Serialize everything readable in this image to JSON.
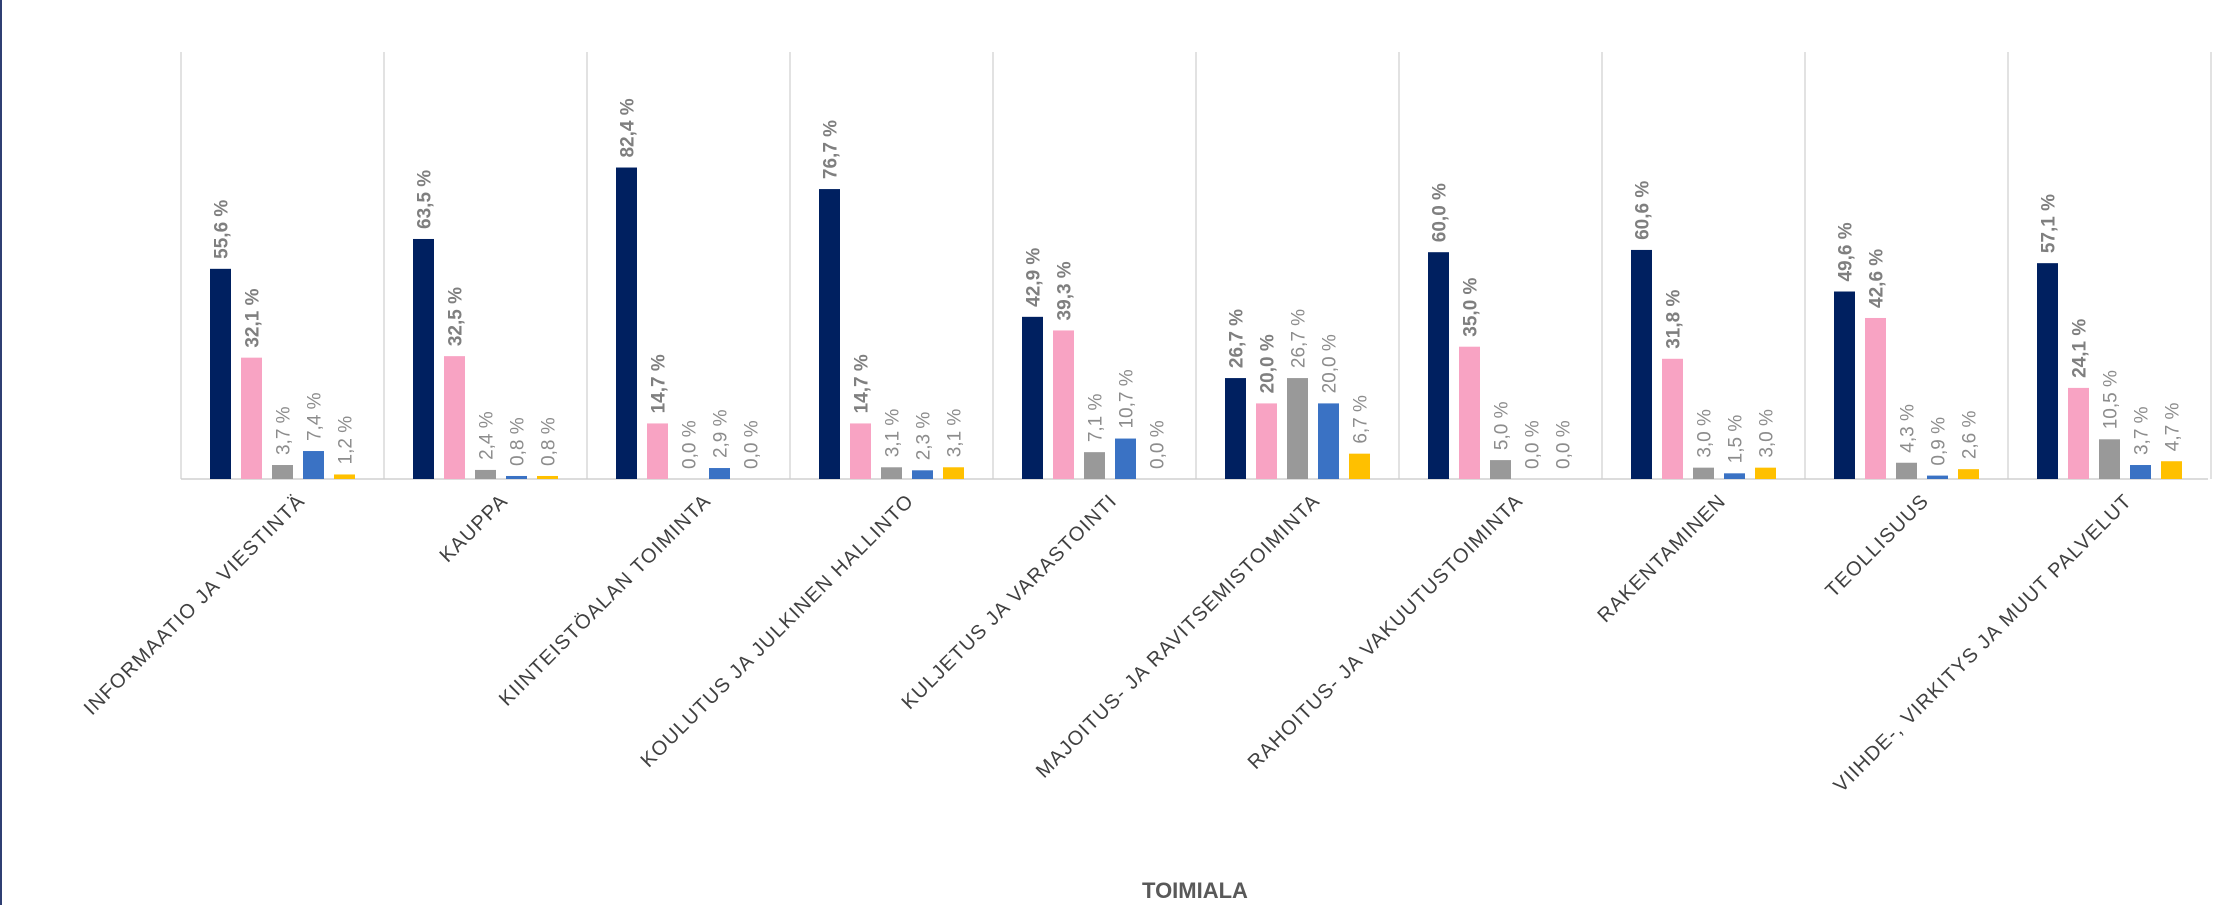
{
  "chart_data": {
    "type": "bar",
    "xlabel": "TOIMIALA",
    "categories": [
      "INFORMAATIO JA VIESTINTÄ",
      "KAUPPA",
      "KIINTEISTÖALAN TOIMINTA",
      "KOULUTUS JA JULKINEN HALLINTO",
      "KULJETUS JA VARASTOINTI",
      "MAJOITUS- JA RAVITSEMISTOIMINTA",
      "RAHOITUS- JA VAKUUTUSTOIMINTA",
      "RAKENTAMINEN",
      "TEOLLISUUS",
      "VIIHDE-, VIRKITYS JA MUUT PALVELUT"
    ],
    "series": [
      {
        "color": "#002060",
        "bold": true,
        "values": [
          55.6,
          63.5,
          82.4,
          76.7,
          42.9,
          26.7,
          60.0,
          60.6,
          49.6,
          57.1
        ],
        "labels": [
          "55,6 %",
          "63,5 %",
          "82,4 %",
          "76,7 %",
          "42,9 %",
          "26,7 %",
          "60,0 %",
          "60,6 %",
          "49,6 %",
          "57,1 %"
        ]
      },
      {
        "color": "#F8A3C3",
        "bold": true,
        "values": [
          32.1,
          32.5,
          14.7,
          14.7,
          39.3,
          20.0,
          35.0,
          31.8,
          42.6,
          24.1
        ],
        "labels": [
          "32,1 %",
          "32,5 %",
          "14,7 %",
          "14,7 %",
          "39,3 %",
          "20,0 %",
          "35,0 %",
          "31,8 %",
          "42,6 %",
          "24,1 %"
        ]
      },
      {
        "color": "#999999",
        "bold": false,
        "values": [
          3.7,
          2.4,
          0.0,
          3.1,
          7.1,
          26.7,
          5.0,
          3.0,
          4.3,
          10.5
        ],
        "labels": [
          "3,7 %",
          "2,4 %",
          "0,0 %",
          "3,1 %",
          "7,1 %",
          "26,7 %",
          "5,0 %",
          "3,0 %",
          "4,3 %",
          "10,5 %"
        ]
      },
      {
        "color": "#3A72C4",
        "bold": false,
        "values": [
          7.4,
          0.8,
          2.9,
          2.3,
          10.7,
          20.0,
          0.0,
          1.5,
          0.9,
          3.7
        ],
        "labels": [
          "7,4 %",
          "0,8 %",
          "2,9 %",
          "2,3 %",
          "10,7 %",
          "20,0 %",
          "0,0 %",
          "1,5 %",
          "0,9 %",
          "3,7 %"
        ]
      },
      {
        "color": "#FFC000",
        "bold": false,
        "values": [
          1.2,
          0.8,
          0.0,
          3.1,
          0.0,
          6.7,
          0.0,
          3.0,
          2.6,
          4.7
        ],
        "labels": [
          "1,2 %",
          "0,8 %",
          "0,0 %",
          "3,1 %",
          "0,0 %",
          "6,7 %",
          "0,0 %",
          "3,0 %",
          "2,6 %",
          "4,7 %"
        ]
      }
    ],
    "ylim": [
      0,
      100
    ],
    "grid": "vertical separators",
    "legend": "none"
  }
}
